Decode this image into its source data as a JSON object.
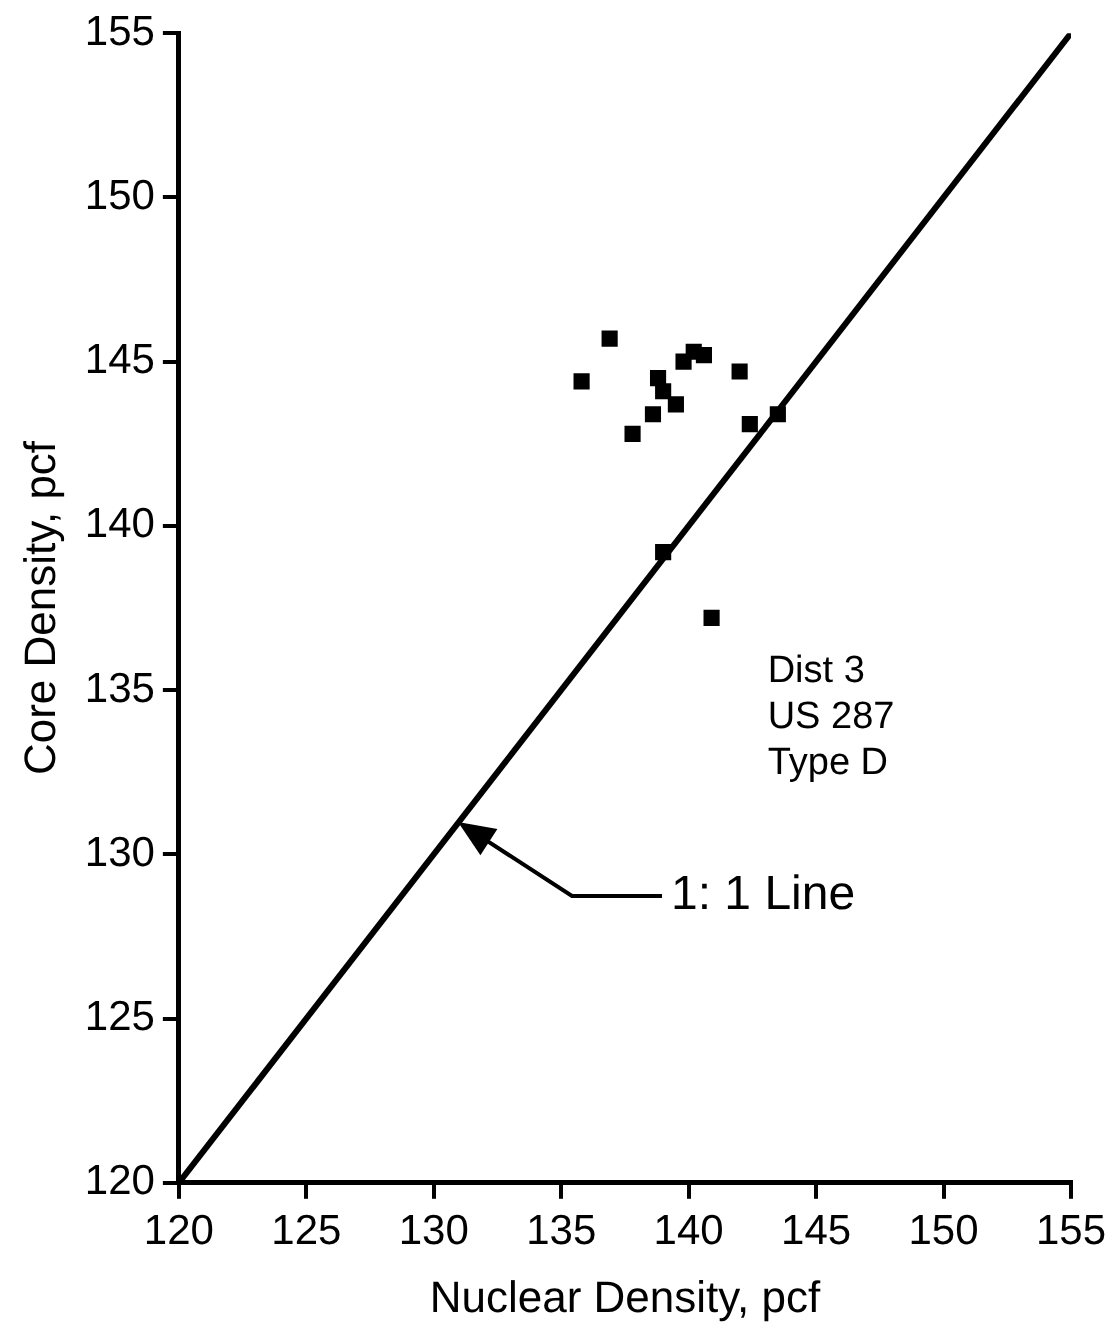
{
  "chart_data": {
    "type": "scatter",
    "xlabel": "Nuclear Density, pcf",
    "ylabel": "Core Density, pcf",
    "xlim": [
      120,
      155
    ],
    "xticks": [
      120,
      125,
      130,
      135,
      140,
      145,
      150,
      155
    ],
    "ylim": [
      120,
      155
    ],
    "yticks": [
      120,
      125,
      130,
      135,
      140,
      145,
      150,
      155
    ],
    "grid": false,
    "legend": false,
    "marker": "square",
    "series": [
      {
        "type": "scatter",
        "color": "#000000",
        "x": [
          136.9,
          135.8,
          140.2,
          139.8,
          140.6,
          142.0,
          138.8,
          139.0,
          139.5,
          138.6,
          137.8,
          142.4,
          143.5,
          139.0,
          140.9
        ],
        "values": [
          145.7,
          144.4,
          145.3,
          145.0,
          145.2,
          144.7,
          144.5,
          144.1,
          143.7,
          143.4,
          142.8,
          143.1,
          143.4,
          139.2,
          137.2
        ]
      },
      {
        "type": "line",
        "color": "#000000",
        "x": [
          120,
          155
        ],
        "values": [
          120,
          155
        ],
        "marker": "none",
        "line_style": "solid"
      }
    ],
    "annotations": [
      "1: 1 Line",
      "Dist 3",
      "US 287",
      "Type D"
    ]
  }
}
